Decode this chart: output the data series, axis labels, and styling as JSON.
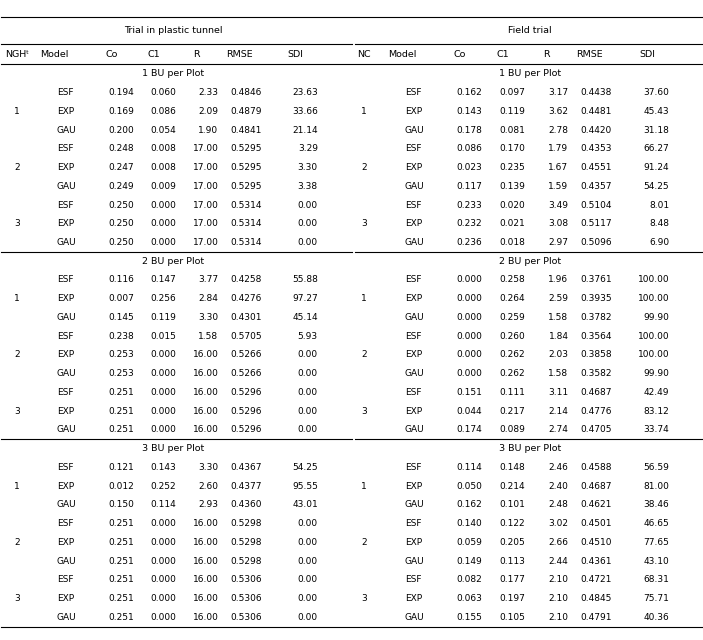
{
  "title_left": "Trial in plastic tunnel",
  "title_right": "Field trial",
  "header_left": [
    "NGHᵗ",
    "Model",
    "Co",
    "C1",
    "R",
    "RMSE",
    "SDI"
  ],
  "header_right": [
    "NC",
    "Model",
    "Co",
    "C1",
    "R",
    "RMSE",
    "SDI"
  ],
  "sections": [
    {
      "label": "1 BU per Plot",
      "rows_left": [
        [
          "",
          "ESF",
          "0.194",
          "0.060",
          "2.33",
          "0.4846",
          "23.63"
        ],
        [
          "1",
          "EXP",
          "0.169",
          "0.086",
          "2.09",
          "0.4879",
          "33.66"
        ],
        [
          "",
          "GAU",
          "0.200",
          "0.054",
          "1.90",
          "0.4841",
          "21.14"
        ],
        [
          "",
          "ESF",
          "0.248",
          "0.008",
          "17.00",
          "0.5295",
          "3.29"
        ],
        [
          "2",
          "EXP",
          "0.247",
          "0.008",
          "17.00",
          "0.5295",
          "3.30"
        ],
        [
          "",
          "GAU",
          "0.249",
          "0.009",
          "17.00",
          "0.5295",
          "3.38"
        ],
        [
          "",
          "ESF",
          "0.250",
          "0.000",
          "17.00",
          "0.5314",
          "0.00"
        ],
        [
          "3",
          "EXP",
          "0.250",
          "0.000",
          "17.00",
          "0.5314",
          "0.00"
        ],
        [
          "",
          "GAU",
          "0.250",
          "0.000",
          "17.00",
          "0.5314",
          "0.00"
        ]
      ],
      "rows_right": [
        [
          "",
          "ESF",
          "0.162",
          "0.097",
          "3.17",
          "0.4438",
          "37.60"
        ],
        [
          "1",
          "EXP",
          "0.143",
          "0.119",
          "3.62",
          "0.4481",
          "45.43"
        ],
        [
          "",
          "GAU",
          "0.178",
          "0.081",
          "2.78",
          "0.4420",
          "31.18"
        ],
        [
          "",
          "ESF",
          "0.086",
          "0.170",
          "1.79",
          "0.4353",
          "66.27"
        ],
        [
          "2",
          "EXP",
          "0.023",
          "0.235",
          "1.67",
          "0.4551",
          "91.24"
        ],
        [
          "",
          "GAU",
          "0.117",
          "0.139",
          "1.59",
          "0.4357",
          "54.25"
        ],
        [
          "",
          "ESF",
          "0.233",
          "0.020",
          "3.49",
          "0.5104",
          "8.01"
        ],
        [
          "3",
          "EXP",
          "0.232",
          "0.021",
          "3.08",
          "0.5117",
          "8.48"
        ],
        [
          "",
          "GAU",
          "0.236",
          "0.018",
          "2.97",
          "0.5096",
          "6.90"
        ]
      ]
    },
    {
      "label": "2 BU per Plot",
      "rows_left": [
        [
          "",
          "ESF",
          "0.116",
          "0.147",
          "3.77",
          "0.4258",
          "55.88"
        ],
        [
          "1",
          "EXP",
          "0.007",
          "0.256",
          "2.84",
          "0.4276",
          "97.27"
        ],
        [
          "",
          "GAU",
          "0.145",
          "0.119",
          "3.30",
          "0.4301",
          "45.14"
        ],
        [
          "",
          "ESF",
          "0.238",
          "0.015",
          "1.58",
          "0.5705",
          "5.93"
        ],
        [
          "2",
          "EXP",
          "0.253",
          "0.000",
          "16.00",
          "0.5266",
          "0.00"
        ],
        [
          "",
          "GAU",
          "0.253",
          "0.000",
          "16.00",
          "0.5266",
          "0.00"
        ],
        [
          "",
          "ESF",
          "0.251",
          "0.000",
          "16.00",
          "0.5296",
          "0.00"
        ],
        [
          "3",
          "EXP",
          "0.251",
          "0.000",
          "16.00",
          "0.5296",
          "0.00"
        ],
        [
          "",
          "GAU",
          "0.251",
          "0.000",
          "16.00",
          "0.5296",
          "0.00"
        ]
      ],
      "rows_right": [
        [
          "",
          "ESF",
          "0.000",
          "0.258",
          "1.96",
          "0.3761",
          "100.00"
        ],
        [
          "1",
          "EXP",
          "0.000",
          "0.264",
          "2.59",
          "0.3935",
          "100.00"
        ],
        [
          "",
          "GAU",
          "0.000",
          "0.259",
          "1.58",
          "0.3782",
          "99.90"
        ],
        [
          "",
          "ESF",
          "0.000",
          "0.260",
          "1.84",
          "0.3564",
          "100.00"
        ],
        [
          "2",
          "EXP",
          "0.000",
          "0.262",
          "2.03",
          "0.3858",
          "100.00"
        ],
        [
          "",
          "GAU",
          "0.000",
          "0.262",
          "1.58",
          "0.3582",
          "99.90"
        ],
        [
          "",
          "ESF",
          "0.151",
          "0.111",
          "3.11",
          "0.4687",
          "42.49"
        ],
        [
          "3",
          "EXP",
          "0.044",
          "0.217",
          "2.14",
          "0.4776",
          "83.12"
        ],
        [
          "",
          "GAU",
          "0.174",
          "0.089",
          "2.74",
          "0.4705",
          "33.74"
        ]
      ]
    },
    {
      "label": "3 BU per Plot",
      "rows_left": [
        [
          "",
          "ESF",
          "0.121",
          "0.143",
          "3.30",
          "0.4367",
          "54.25"
        ],
        [
          "1",
          "EXP",
          "0.012",
          "0.252",
          "2.60",
          "0.4377",
          "95.55"
        ],
        [
          "",
          "GAU",
          "0.150",
          "0.114",
          "2.93",
          "0.4360",
          "43.01"
        ],
        [
          "",
          "ESF",
          "0.251",
          "0.000",
          "16.00",
          "0.5298",
          "0.00"
        ],
        [
          "2",
          "EXP",
          "0.251",
          "0.000",
          "16.00",
          "0.5298",
          "0.00"
        ],
        [
          "",
          "GAU",
          "0.251",
          "0.000",
          "16.00",
          "0.5298",
          "0.00"
        ],
        [
          "",
          "ESF",
          "0.251",
          "0.000",
          "16.00",
          "0.5306",
          "0.00"
        ],
        [
          "3",
          "EXP",
          "0.251",
          "0.000",
          "16.00",
          "0.5306",
          "0.00"
        ],
        [
          "",
          "GAU",
          "0.251",
          "0.000",
          "16.00",
          "0.5306",
          "0.00"
        ]
      ],
      "rows_right": [
        [
          "",
          "ESF",
          "0.114",
          "0.148",
          "2.46",
          "0.4588",
          "56.59"
        ],
        [
          "1",
          "EXP",
          "0.050",
          "0.214",
          "2.40",
          "0.4687",
          "81.00"
        ],
        [
          "",
          "GAU",
          "0.162",
          "0.101",
          "2.48",
          "0.4621",
          "38.46"
        ],
        [
          "",
          "ESF",
          "0.140",
          "0.122",
          "3.02",
          "0.4501",
          "46.65"
        ],
        [
          "2",
          "EXP",
          "0.059",
          "0.205",
          "2.66",
          "0.4510",
          "77.65"
        ],
        [
          "",
          "GAU",
          "0.149",
          "0.113",
          "2.44",
          "0.4361",
          "43.10"
        ],
        [
          "",
          "ESF",
          "0.082",
          "0.177",
          "2.10",
          "0.4721",
          "68.31"
        ],
        [
          "3",
          "EXP",
          "0.063",
          "0.197",
          "2.10",
          "0.4845",
          "75.71"
        ],
        [
          "",
          "GAU",
          "0.155",
          "0.105",
          "2.10",
          "0.4791",
          "40.36"
        ]
      ]
    }
  ],
  "bg_color": "#ffffff",
  "text_color": "#000000",
  "line_color": "#000000"
}
